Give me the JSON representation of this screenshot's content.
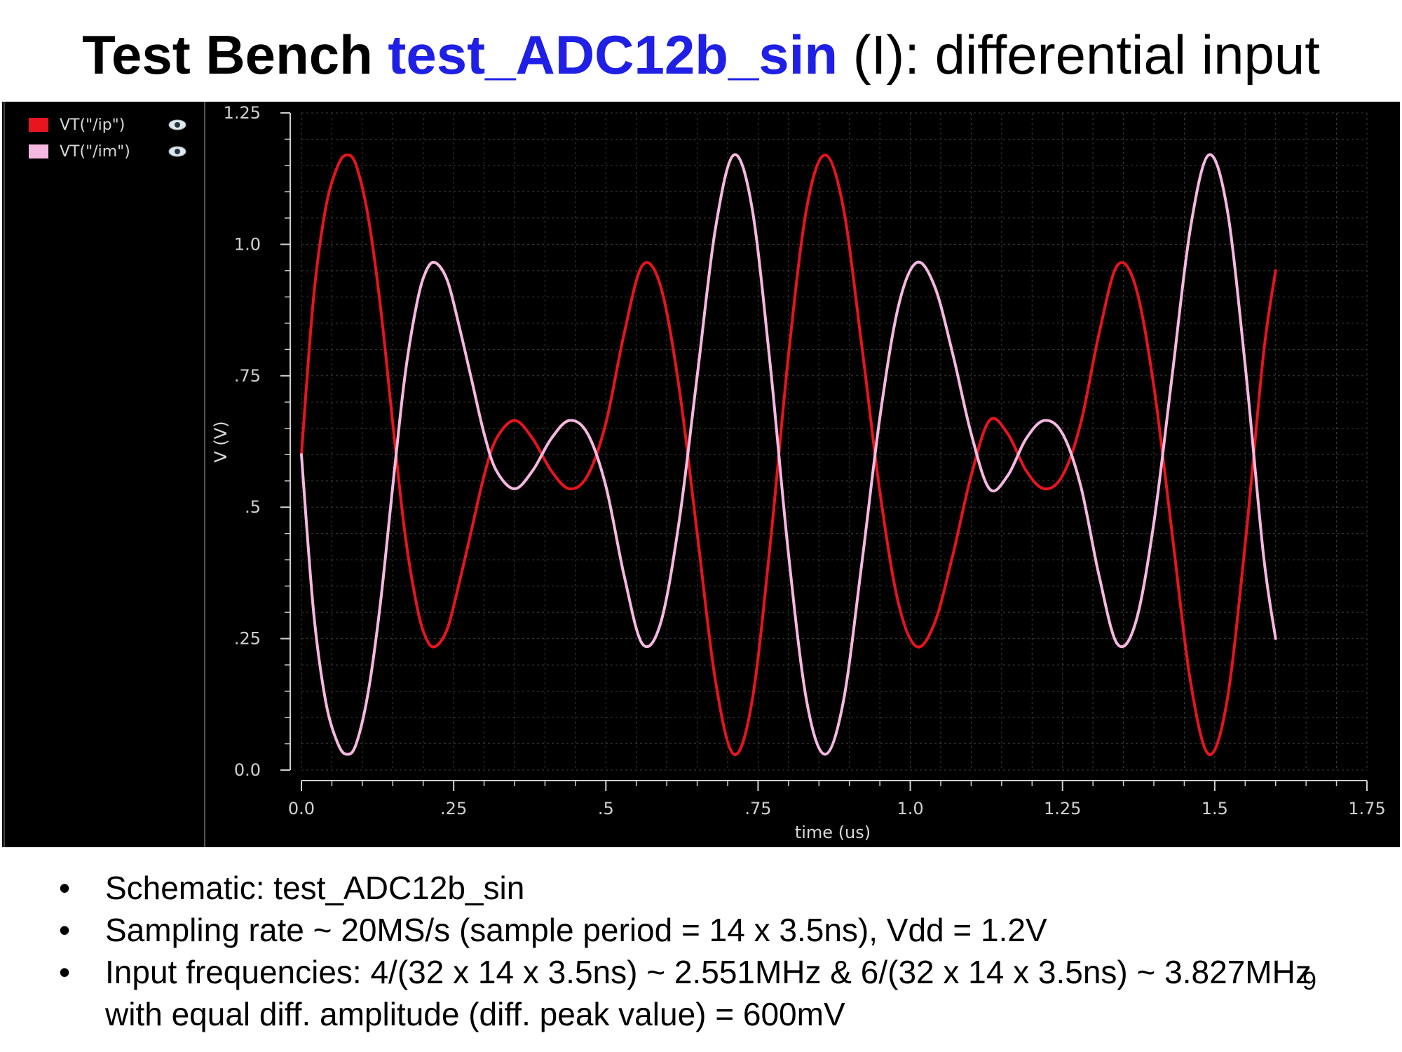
{
  "slide": {
    "title_parts": {
      "prefix": "Test Bench ",
      "name": "test_ADC12b_sin",
      "suffix": " (I):  differential input"
    },
    "page_number": "9",
    "bullets": [
      "Schematic: test_ADC12b_sin",
      "Sampling rate ~ 20MS/s (sample period = 14 x 3.5ns), Vdd = 1.2V",
      "Input frequencies: 4/(32 x 14 x 3.5ns) ~ 2.551MHz & 6/(32 x 14 x 3.5ns) ~ 3.827MHz with equal diff. amplitude (diff. peak value) = 600mV"
    ],
    "bullet_symbol": "•"
  },
  "chart_data": {
    "type": "line",
    "title": "",
    "xlabel": "time (us)",
    "ylabel": "V (V)",
    "xlim": [
      0,
      1.75
    ],
    "ylim": [
      0,
      1.25
    ],
    "x_ticks": [
      0,
      0.25,
      0.5,
      0.75,
      1.0,
      1.25,
      1.5,
      1.75
    ],
    "x_tick_labels": [
      "0.0",
      ".25",
      ".5",
      ".75",
      "1.0",
      "1.25",
      "1.5",
      "1.75"
    ],
    "y_ticks": [
      0,
      0.25,
      0.5,
      0.75,
      1.0,
      1.25
    ],
    "y_tick_labels": [
      "0.0",
      ".25",
      ".5",
      ".75",
      "1.0",
      "1.25"
    ],
    "grid": true,
    "legend_position": "top-left",
    "legend_eye_icon": "eye-icon",
    "background_color": "#000000",
    "axis_color": "#cfcfcf",
    "grid_color": "#3c3c3c",
    "series": [
      {
        "name": "VT(\"/ip\")",
        "color": "#e8141e",
        "points": [
          [
            0.0,
            0.6
          ],
          [
            0.02,
            0.9
          ],
          [
            0.04,
            1.07
          ],
          [
            0.06,
            1.15
          ],
          [
            0.075,
            1.17
          ],
          [
            0.09,
            1.15
          ],
          [
            0.11,
            1.05
          ],
          [
            0.13,
            0.88
          ],
          [
            0.15,
            0.66
          ],
          [
            0.17,
            0.45
          ],
          [
            0.19,
            0.31
          ],
          [
            0.205,
            0.25
          ],
          [
            0.22,
            0.235
          ],
          [
            0.24,
            0.27
          ],
          [
            0.26,
            0.36
          ],
          [
            0.28,
            0.46
          ],
          [
            0.3,
            0.56
          ],
          [
            0.32,
            0.63
          ],
          [
            0.35,
            0.665
          ],
          [
            0.38,
            0.63
          ],
          [
            0.41,
            0.57
          ],
          [
            0.44,
            0.535
          ],
          [
            0.47,
            0.56
          ],
          [
            0.5,
            0.66
          ],
          [
            0.53,
            0.83
          ],
          [
            0.56,
            0.96
          ],
          [
            0.59,
            0.92
          ],
          [
            0.62,
            0.73
          ],
          [
            0.65,
            0.45
          ],
          [
            0.68,
            0.17
          ],
          [
            0.71,
            0.03
          ],
          [
            0.74,
            0.13
          ],
          [
            0.77,
            0.43
          ],
          [
            0.8,
            0.79
          ],
          [
            0.83,
            1.07
          ],
          [
            0.86,
            1.17
          ],
          [
            0.89,
            1.07
          ],
          [
            0.92,
            0.81
          ],
          [
            0.95,
            0.53
          ],
          [
            0.98,
            0.32
          ],
          [
            1.01,
            0.235
          ],
          [
            1.04,
            0.28
          ],
          [
            1.07,
            0.41
          ],
          [
            1.1,
            0.56
          ],
          [
            1.13,
            0.665
          ],
          [
            1.16,
            0.64
          ],
          [
            1.19,
            0.57
          ],
          [
            1.22,
            0.535
          ],
          [
            1.25,
            0.56
          ],
          [
            1.28,
            0.66
          ],
          [
            1.31,
            0.83
          ],
          [
            1.34,
            0.96
          ],
          [
            1.37,
            0.92
          ],
          [
            1.4,
            0.73
          ],
          [
            1.43,
            0.45
          ],
          [
            1.46,
            0.17
          ],
          [
            1.49,
            0.03
          ],
          [
            1.52,
            0.13
          ],
          [
            1.55,
            0.43
          ],
          [
            1.58,
            0.79
          ],
          [
            1.6,
            0.95
          ]
        ]
      },
      {
        "name": "VT(\"/im\")",
        "color": "#f5b8e0",
        "points": [
          [
            0.0,
            0.6
          ],
          [
            0.02,
            0.3
          ],
          [
            0.04,
            0.13
          ],
          [
            0.06,
            0.05
          ],
          [
            0.075,
            0.03
          ],
          [
            0.09,
            0.05
          ],
          [
            0.11,
            0.15
          ],
          [
            0.13,
            0.32
          ],
          [
            0.15,
            0.54
          ],
          [
            0.17,
            0.75
          ],
          [
            0.19,
            0.89
          ],
          [
            0.205,
            0.95
          ],
          [
            0.22,
            0.965
          ],
          [
            0.24,
            0.93
          ],
          [
            0.26,
            0.84
          ],
          [
            0.28,
            0.74
          ],
          [
            0.3,
            0.64
          ],
          [
            0.32,
            0.57
          ],
          [
            0.35,
            0.535
          ],
          [
            0.38,
            0.57
          ],
          [
            0.41,
            0.63
          ],
          [
            0.44,
            0.665
          ],
          [
            0.47,
            0.64
          ],
          [
            0.5,
            0.54
          ],
          [
            0.53,
            0.37
          ],
          [
            0.56,
            0.24
          ],
          [
            0.59,
            0.28
          ],
          [
            0.62,
            0.47
          ],
          [
            0.65,
            0.75
          ],
          [
            0.68,
            1.03
          ],
          [
            0.71,
            1.17
          ],
          [
            0.74,
            1.07
          ],
          [
            0.77,
            0.77
          ],
          [
            0.8,
            0.41
          ],
          [
            0.83,
            0.13
          ],
          [
            0.86,
            0.03
          ],
          [
            0.89,
            0.13
          ],
          [
            0.92,
            0.39
          ],
          [
            0.95,
            0.67
          ],
          [
            0.98,
            0.88
          ],
          [
            1.01,
            0.965
          ],
          [
            1.04,
            0.92
          ],
          [
            1.07,
            0.79
          ],
          [
            1.1,
            0.64
          ],
          [
            1.13,
            0.535
          ],
          [
            1.16,
            0.56
          ],
          [
            1.19,
            0.63
          ],
          [
            1.22,
            0.665
          ],
          [
            1.25,
            0.64
          ],
          [
            1.28,
            0.54
          ],
          [
            1.31,
            0.37
          ],
          [
            1.34,
            0.24
          ],
          [
            1.37,
            0.28
          ],
          [
            1.4,
            0.47
          ],
          [
            1.43,
            0.75
          ],
          [
            1.46,
            1.03
          ],
          [
            1.49,
            1.17
          ],
          [
            1.52,
            1.07
          ],
          [
            1.55,
            0.77
          ],
          [
            1.58,
            0.41
          ],
          [
            1.6,
            0.25
          ]
        ]
      }
    ]
  }
}
